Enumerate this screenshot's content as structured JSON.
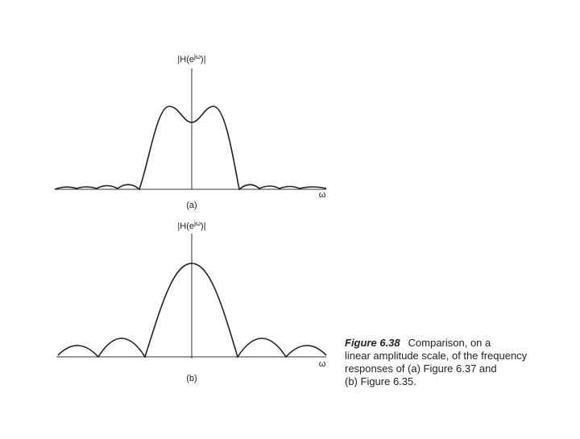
{
  "plot_a": {
    "ylabel": {
      "prefix": "|H(e",
      "sup": "jω",
      "suffix": ")|"
    },
    "xlabel": "ω",
    "tag": "(a)"
  },
  "plot_b": {
    "ylabel": {
      "prefix": "|H(e",
      "sup": "jω",
      "suffix": ")|"
    },
    "xlabel": "ω",
    "tag": "(b)"
  },
  "caption": {
    "label": "Figure 6.38",
    "lines": [
      "Comparison, on a",
      "linear amplitude scale, of the frequency",
      "responses of (a) Figure 6.37 and",
      "(b) Figure 6.35."
    ]
  }
}
